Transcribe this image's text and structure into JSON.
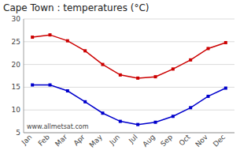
{
  "chart_data": {
    "type": "line",
    "title": "Cape Town : temperatures (°C)",
    "categories": [
      "Jan",
      "Feb",
      "Mar",
      "Apr",
      "May",
      "Jun",
      "Jul",
      "Aug",
      "Sep",
      "Oct",
      "Nov",
      "Dec"
    ],
    "series": [
      {
        "color": "#cc0000",
        "marker": "square",
        "values": [
          26,
          26.5,
          25.2,
          23,
          20,
          17.7,
          17,
          17.3,
          19,
          21,
          23.5,
          24.8
        ]
      },
      {
        "color": "#0000cc",
        "marker": "square",
        "values": [
          15.5,
          15.5,
          14.2,
          11.8,
          9.3,
          7.5,
          6.8,
          7.3,
          8.6,
          10.5,
          13,
          14.8
        ]
      }
    ],
    "ylim": [
      5,
      30
    ],
    "yticks": [
      5,
      10,
      15,
      20,
      25,
      30
    ],
    "grid": true,
    "annotations": [
      "www.allmetsat.com"
    ]
  }
}
